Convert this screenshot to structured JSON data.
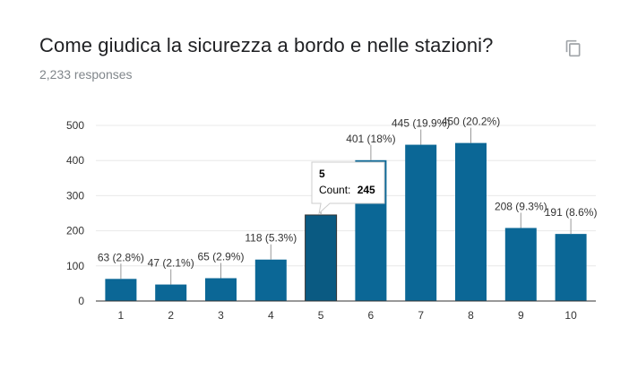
{
  "header": {
    "title": "Come giudica la sicurezza a bordo e nelle stazioni?",
    "responses": "2,233 responses",
    "copy_icon": "copy-icon"
  },
  "colors": {
    "bar": "#0b6796",
    "bar_highlight": "#0a5a82",
    "grid": "#e8e8e8",
    "axis": "#333333"
  },
  "chart_data": {
    "type": "bar",
    "title": "Come giudica la sicurezza a bordo e nelle stazioni?",
    "xlabel": "",
    "ylabel": "",
    "categories": [
      "1",
      "2",
      "3",
      "4",
      "5",
      "6",
      "7",
      "8",
      "9",
      "10"
    ],
    "values": [
      63,
      47,
      65,
      118,
      245,
      401,
      445,
      450,
      208,
      191
    ],
    "data_labels": [
      "63 (2.8%)",
      "47 (2.1%)",
      "65 (2.9%)",
      "118 (5.3%)",
      "245",
      "401 (18%)",
      "445 (19.9%)",
      "450 (20.2%)",
      "208 (9.3%)",
      "191 (8.6%)"
    ],
    "yticks": [
      0,
      100,
      200,
      300,
      400,
      500
    ],
    "ylim": [
      0,
      500
    ],
    "grid": true,
    "highlighted_index": 4,
    "tooltip": {
      "title": "5",
      "count_label": "Count:",
      "count_value": "245"
    }
  }
}
